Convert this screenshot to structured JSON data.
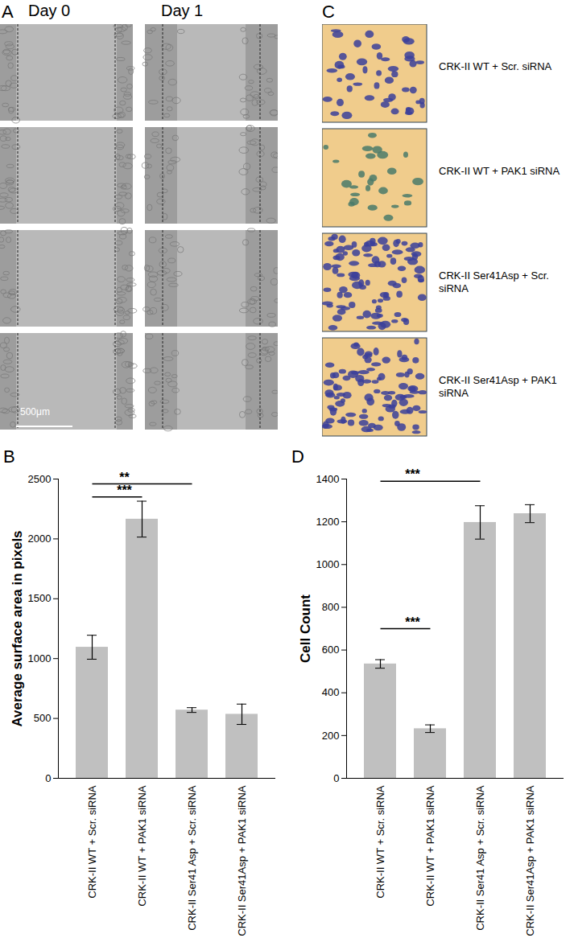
{
  "image_panels": [
    {
      "label": "A",
      "column_titles": [
        "Day 0",
        "Day 1"
      ],
      "scale_bar": "500μm"
    },
    {
      "label": "C",
      "row_labels": [
        "CRK-II WT + Scr. siRNA",
        "CRK-II WT + PAK1 siRNA",
        "CRK-II Ser41Asp + Scr. siRNA",
        "CRK-II Ser41Asp + PAK1 siRNA"
      ]
    }
  ],
  "chart_data": [
    {
      "type": "bar",
      "panel": "B",
      "y_label": "Average surface area in pixels",
      "categories": [
        "CRK-II WT + Scr. siRNA",
        "CRK-II WT + PAK1 siRNA",
        "CRK-II Ser41 Asp + Scr. siRNA",
        "CRK-II Ser41Asp + PAK1 siRNA"
      ],
      "values": [
        1095,
        2165,
        570,
        535
      ],
      "errors": [
        100,
        150,
        20,
        85
      ],
      "color": "#c0c0c0",
      "ylim": [
        0,
        2500
      ],
      "yticks": [
        0,
        500,
        1000,
        1500,
        2000,
        2500
      ],
      "grid": false,
      "significance": [
        {
          "between": [
            "CRK-II WT + Scr. siRNA",
            "CRK-II WT + PAK1 siRNA"
          ],
          "y": 2350,
          "label": "***"
        },
        {
          "between": [
            "CRK-II WT + Scr. siRNA",
            "CRK-II Ser41 Asp + Scr. siRNA"
          ],
          "y": 2460,
          "label": "**"
        }
      ]
    },
    {
      "type": "bar",
      "panel": "D",
      "y_label": "Cell Count",
      "categories": [
        "CRK-II WT + Scr. siRNA",
        "CRK-II WT + PAK1 siRNA",
        "CRK-II Ser41 Asp + Scr. siRNA",
        "CRK-II Ser41Asp + PAK1 siRNA"
      ],
      "values": [
        535,
        232,
        1197,
        1238
      ],
      "errors": [
        20,
        18,
        78,
        42
      ],
      "color": "#c0c0c0",
      "ylim": [
        0,
        1400
      ],
      "yticks": [
        0,
        200,
        400,
        600,
        800,
        1000,
        1200,
        1400
      ],
      "grid": false,
      "significance": [
        {
          "between": [
            "CRK-II WT + Scr. siRNA",
            "CRK-II WT + PAK1 siRNA"
          ],
          "y": 700,
          "label": "***"
        },
        {
          "between": [
            "CRK-II WT + Scr. siRNA",
            "CRK-II Ser41 Asp + Scr. siRNA"
          ],
          "y": 1390,
          "label": "***"
        }
      ]
    }
  ]
}
